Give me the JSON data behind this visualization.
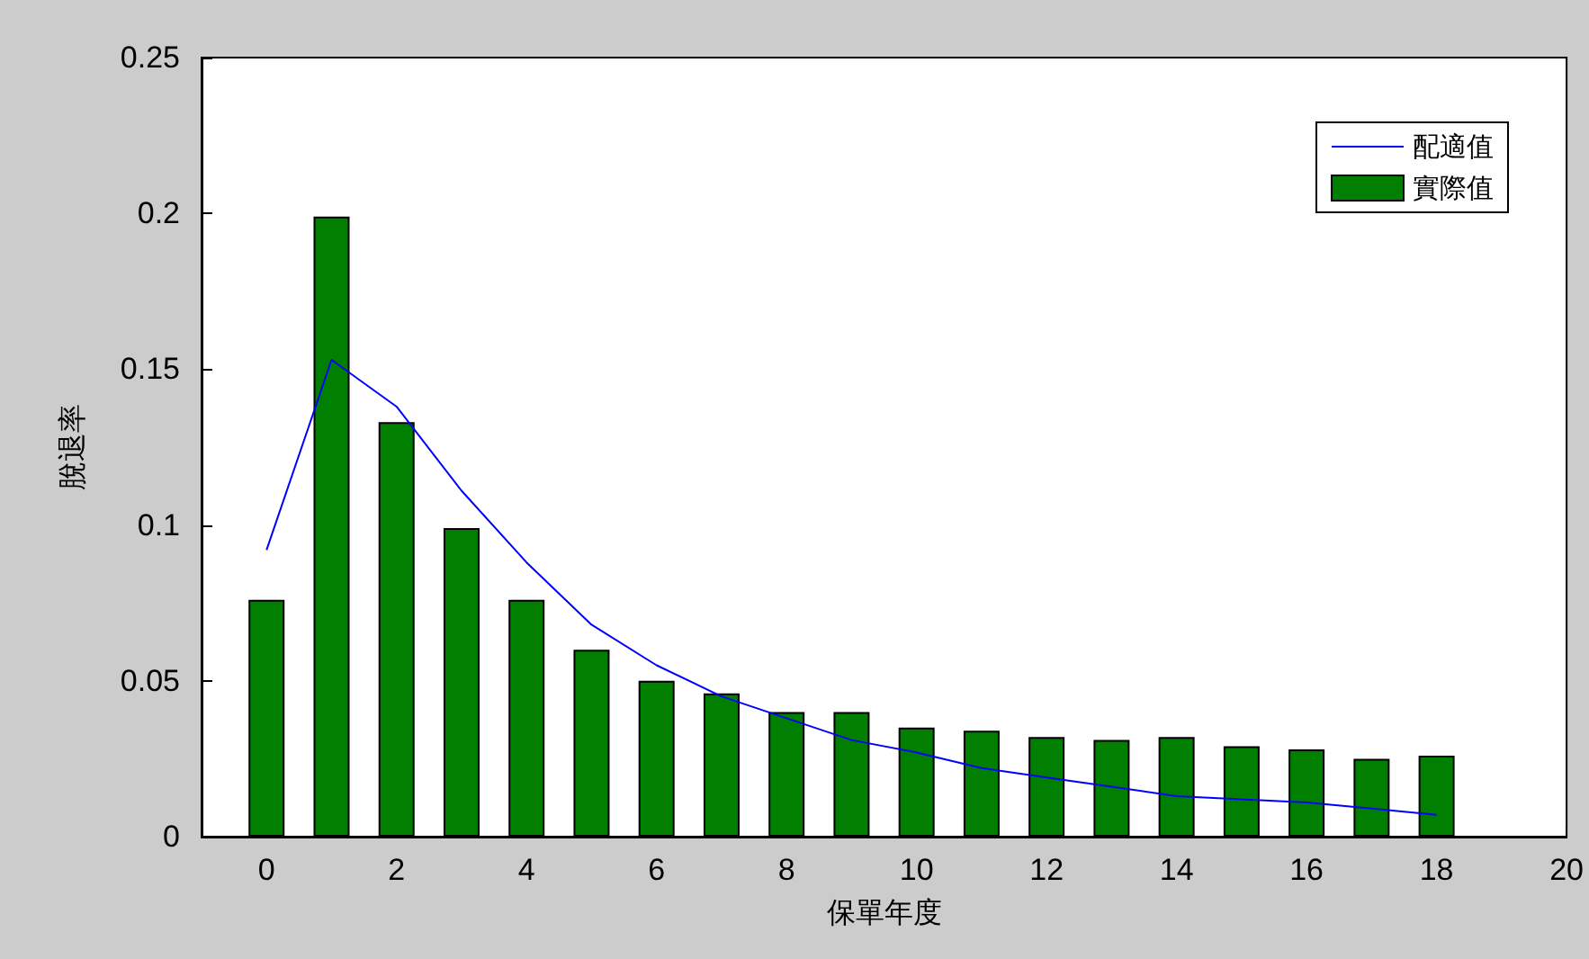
{
  "chart_data": {
    "type": "bar",
    "xlabel": "保單年度",
    "ylabel": "脫退率",
    "x": [
      0,
      1,
      2,
      3,
      4,
      5,
      6,
      7,
      8,
      9,
      10,
      11,
      12,
      13,
      14,
      15,
      16,
      17,
      18
    ],
    "series": [
      {
        "name": "配適值",
        "type": "line",
        "color": "#0000ff",
        "x": [
          0,
          1,
          2,
          3,
          4,
          5,
          6,
          7,
          8,
          9,
          10,
          11,
          12,
          13,
          14,
          15,
          16,
          17,
          18
        ],
        "values": [
          0.092,
          0.153,
          0.138,
          0.111,
          0.088,
          0.068,
          0.055,
          0.045,
          0.038,
          0.031,
          0.027,
          0.022,
          0.019,
          0.016,
          0.013,
          0.012,
          0.011,
          0.009,
          0.007
        ]
      },
      {
        "name": "實際值",
        "color": "#007f00",
        "values": [
          0.076,
          0.199,
          0.133,
          0.099,
          0.076,
          0.06,
          0.05,
          0.046,
          0.04,
          0.04,
          0.035,
          0.034,
          0.032,
          0.031,
          0.032,
          0.029,
          0.028,
          0.025,
          0.026
        ]
      }
    ],
    "xlim": [
      -1,
      20
    ],
    "xticks": [
      0,
      2,
      4,
      6,
      8,
      10,
      12,
      14,
      16,
      18,
      20
    ],
    "ylim": [
      0,
      0.25
    ],
    "yticks": [
      0,
      0.05,
      0.1,
      0.15,
      0.2,
      0.25
    ],
    "grid": false,
    "legend": "top right",
    "marker": "none",
    "line_style": "solid"
  }
}
